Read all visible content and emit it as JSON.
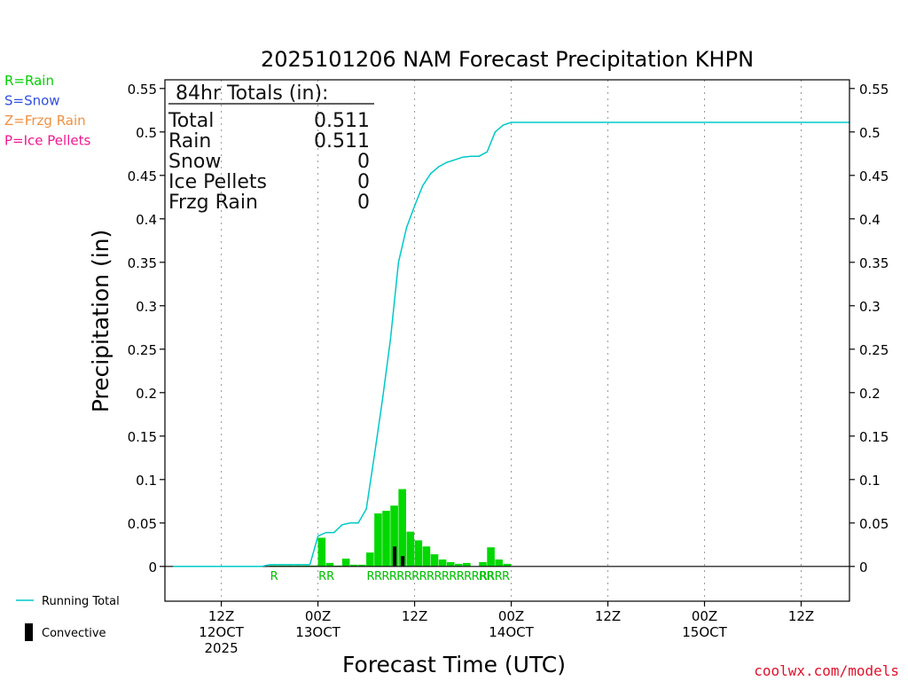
{
  "chart_data": {
    "type": "bar",
    "title": "2025101206 NAM Forecast Precipitation KHPN",
    "ylabel": "Precipitation (in)",
    "xlabel": "Forecast Time (UTC)",
    "ylim": [
      -0.04,
      0.56
    ],
    "xlim_hours": [
      -1,
      84
    ],
    "yticks": [
      0,
      0.05,
      0.1,
      0.15,
      0.2,
      0.25,
      0.3,
      0.35,
      0.4,
      0.45,
      0.5,
      0.55
    ],
    "ytick_labels": [
      "0",
      "0.05",
      "0.1",
      "0.15",
      "0.2",
      "0.25",
      "0.3",
      "0.35",
      "0.4",
      "0.45",
      "0.5",
      "0.55"
    ],
    "xticks": [
      {
        "hour": 6,
        "lines": [
          "12Z",
          "12OCT",
          "2025"
        ]
      },
      {
        "hour": 18,
        "lines": [
          "00Z",
          "13OCT"
        ]
      },
      {
        "hour": 30,
        "lines": [
          "12Z"
        ]
      },
      {
        "hour": 42,
        "lines": [
          "00Z",
          "14OCT"
        ]
      },
      {
        "hour": 54,
        "lines": [
          "12Z"
        ]
      },
      {
        "hour": 66,
        "lines": [
          "00Z",
          "15OCT"
        ]
      },
      {
        "hour": 78,
        "lines": [
          "12Z"
        ]
      }
    ],
    "ptype_legend": [
      {
        "label": "R=Rain",
        "color": "#00d000"
      },
      {
        "label": "S=Snow",
        "color": "#3050e0"
      },
      {
        "label": "Z=Frzg Rain",
        "color": "#f09040"
      },
      {
        "label": "P=Ice Pellets",
        "color": "#f01890"
      }
    ],
    "series_legend": [
      {
        "label": "Running Total",
        "color": "#00c8c8",
        "kind": "line"
      },
      {
        "label": "Convective",
        "color": "#000000",
        "kind": "bar"
      }
    ],
    "totals_box": {
      "heading": "84hr Totals (in):",
      "rows": [
        {
          "label": "Total",
          "value": "0.511"
        },
        {
          "label": "Rain",
          "value": "0.511"
        },
        {
          "label": "Snow",
          "value": "0"
        },
        {
          "label": "Ice Pellets",
          "value": "0"
        },
        {
          "label": "Frzg Rain",
          "value": "0"
        }
      ]
    },
    "bars": [
      {
        "hour": 12,
        "value": 0.001
      },
      {
        "hour": 13,
        "value": 0.001
      },
      {
        "hour": 14,
        "value": 0.001
      },
      {
        "hour": 15,
        "value": 0.001
      },
      {
        "hour": 16,
        "value": 0.001
      },
      {
        "hour": 17,
        "value": 0.001
      },
      {
        "hour": 18,
        "value": 0.033
      },
      {
        "hour": 19,
        "value": 0.004
      },
      {
        "hour": 20,
        "value": 0.001
      },
      {
        "hour": 21,
        "value": 0.009
      },
      {
        "hour": 22,
        "value": 0.002
      },
      {
        "hour": 23,
        "value": 0.002
      },
      {
        "hour": 24,
        "value": 0.016
      },
      {
        "hour": 25,
        "value": 0.061
      },
      {
        "hour": 26,
        "value": 0.064
      },
      {
        "hour": 27,
        "value": 0.07
      },
      {
        "hour": 28,
        "value": 0.089
      },
      {
        "hour": 29,
        "value": 0.04
      },
      {
        "hour": 30,
        "value": 0.03
      },
      {
        "hour": 31,
        "value": 0.023
      },
      {
        "hour": 32,
        "value": 0.014
      },
      {
        "hour": 33,
        "value": 0.008
      },
      {
        "hour": 34,
        "value": 0.005
      },
      {
        "hour": 35,
        "value": 0.003
      },
      {
        "hour": 36,
        "value": 0.004
      },
      {
        "hour": 38,
        "value": 0.005
      },
      {
        "hour": 39,
        "value": 0.022
      },
      {
        "hour": 40,
        "value": 0.008
      },
      {
        "hour": 41,
        "value": 0.003
      }
    ],
    "convective": [
      {
        "hour": 27,
        "value": 0.023
      },
      {
        "hour": 28,
        "value": 0.012
      }
    ],
    "running_total": {
      "x": [
        0,
        11,
        12,
        17,
        18,
        19,
        20,
        21,
        22,
        23,
        24,
        25,
        26,
        27,
        28,
        29,
        30,
        31,
        32,
        33,
        34,
        35,
        36,
        37,
        38,
        39,
        40,
        41,
        42,
        84
      ],
      "y": [
        0,
        0,
        0.002,
        0.002,
        0.035,
        0.039,
        0.039,
        0.048,
        0.05,
        0.05,
        0.066,
        0.127,
        0.191,
        0.261,
        0.35,
        0.39,
        0.415,
        0.438,
        0.452,
        0.46,
        0.465,
        0.468,
        0.471,
        0.472,
        0.472,
        0.477,
        0.5,
        0.508,
        0.511,
        0.511
      ]
    },
    "ptype_markers": [
      {
        "hour": 12,
        "letter": "R"
      },
      {
        "hour": 18,
        "letter": "R"
      },
      {
        "hour": 19,
        "letter": "R"
      },
      {
        "hour": 24,
        "letter": "RRRRRRRRRRRRRRRRR"
      },
      {
        "hour": 38,
        "letter": "RRRR"
      }
    ]
  },
  "footer": {
    "credit": "coolwx.com/models"
  }
}
